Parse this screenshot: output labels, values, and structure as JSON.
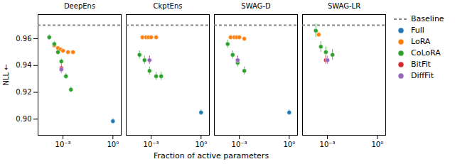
{
  "chart_data": {
    "type": "scatter",
    "xlabel": "Fraction of active parameters",
    "ylabel": "NLL ←",
    "log": "x",
    "xlim": [
      3.1622776601683795e-05,
      3.1622776601683795
    ],
    "xticks": [
      {
        "value": 0.001,
        "label": "10⁻³"
      },
      {
        "value": 1,
        "label": "10⁰"
      }
    ],
    "ylim": [
      0.888,
      0.978
    ],
    "yticks": [
      {
        "value": 0.9,
        "label": "0.90"
      },
      0.92,
      0.94,
      0.96
    ],
    "grid": false,
    "legend": "right",
    "panels": [
      {
        "title": "DeepEns",
        "series": [
          {
            "name": "Baseline",
            "type": "rule",
            "line_style": "dashed",
            "color": "#888888",
            "values": [
              0.97
            ]
          },
          {
            "name": "Full",
            "color": "#1f77b4",
            "marker": "circle",
            "x": [
              1.0
            ],
            "values": [
              0.8985
            ],
            "errors": [
              0.002
            ]
          },
          {
            "name": "LoRA",
            "color": "#ff7f0e",
            "marker": "circle",
            "x": [
              0.0003,
              0.0005,
              0.0007,
              0.001,
              0.002,
              0.004
            ],
            "values": [
              0.955,
              0.953,
              0.952,
              0.951,
              0.95,
              0.95
            ],
            "errors": [
              0.001,
              0.001,
              0.001,
              0.001,
              0.001,
              0.001
            ]
          },
          {
            "name": "CoLoRA",
            "color": "#2ca02c",
            "marker": "circle",
            "x": [
              0.00015,
              0.0003,
              0.0005,
              0.0008,
              0.0015,
              0.003
            ],
            "values": [
              0.961,
              0.956,
              0.95,
              0.943,
              0.932,
              0.922
            ],
            "errors": [
              0.002,
              0.002,
              0.002,
              0.002,
              0.002,
              0.002
            ]
          },
          {
            "name": "BitFit",
            "color": "#d62728",
            "marker": "circle",
            "x": [
              0.0008
            ],
            "values": [
              0.938
            ],
            "errors": [
              0.003
            ]
          },
          {
            "name": "DiffFit",
            "color": "#9467bd",
            "marker": "circle",
            "x": [
              0.0008
            ],
            "values": [
              0.937
            ],
            "errors": [
              0.003
            ]
          }
        ]
      },
      {
        "title": "CkptEns",
        "series": [
          {
            "name": "Baseline",
            "type": "rule",
            "line_style": "dashed",
            "color": "#888888",
            "values": [
              0.97
            ]
          },
          {
            "name": "Full",
            "color": "#1f77b4",
            "marker": "circle",
            "x": [
              1.0
            ],
            "values": [
              0.905
            ],
            "errors": [
              0.002
            ]
          },
          {
            "name": "LoRA",
            "color": "#ff7f0e",
            "marker": "circle",
            "x": [
              0.0003,
              0.0005,
              0.0007,
              0.001,
              0.002
            ],
            "values": [
              0.961,
              0.961,
              0.961,
              0.961,
              0.961
            ],
            "errors": [
              0.0005,
              0.0005,
              0.0005,
              0.0005,
              0.0005
            ]
          },
          {
            "name": "CoLoRA",
            "color": "#2ca02c",
            "marker": "circle",
            "x": [
              0.0002,
              0.0004,
              0.0008,
              0.002,
              0.004
            ],
            "values": [
              0.948,
              0.944,
              0.936,
              0.932,
              0.932
            ],
            "errors": [
              0.003,
              0.003,
              0.003,
              0.003,
              0.003
            ]
          },
          {
            "name": "BitFit",
            "color": "#d62728",
            "marker": "circle",
            "x": [
              0.0008
            ],
            "values": [
              0.944
            ],
            "errors": [
              0.003
            ]
          },
          {
            "name": "DiffFit",
            "color": "#9467bd",
            "marker": "circle",
            "x": [
              0.0008
            ],
            "values": [
              0.944
            ],
            "errors": [
              0.003
            ]
          }
        ]
      },
      {
        "title": "SWAG-D",
        "series": [
          {
            "name": "Baseline",
            "type": "rule",
            "line_style": "dashed",
            "color": "#888888",
            "values": [
              0.97
            ]
          },
          {
            "name": "Full",
            "color": "#1f77b4",
            "marker": "circle",
            "x": [
              1.0
            ],
            "values": [
              0.905
            ],
            "errors": [
              0.002
            ]
          },
          {
            "name": "LoRA",
            "color": "#ff7f0e",
            "marker": "circle",
            "x": [
              0.0003,
              0.0005,
              0.0007,
              0.001,
              0.002
            ],
            "values": [
              0.961,
              0.961,
              0.961,
              0.961,
              0.96
            ],
            "errors": [
              0.0005,
              0.0005,
              0.0005,
              0.0005,
              0.0005
            ]
          },
          {
            "name": "CoLoRA",
            "color": "#2ca02c",
            "marker": "circle",
            "x": [
              0.0002,
              0.0004,
              0.0008,
              0.002
            ],
            "values": [
              0.956,
              0.948,
              0.942,
              0.936
            ],
            "errors": [
              0.003,
              0.003,
              0.003,
              0.003
            ]
          },
          {
            "name": "BitFit",
            "color": "#d62728",
            "marker": "circle",
            "x": [
              0.0008
            ],
            "values": [
              0.944
            ],
            "errors": [
              0.003
            ]
          },
          {
            "name": "DiffFit",
            "color": "#9467bd",
            "marker": "circle",
            "x": [
              0.0008
            ],
            "values": [
              0.944
            ],
            "errors": [
              0.003
            ]
          }
        ]
      },
      {
        "title": "SWAG-LR",
        "series": [
          {
            "name": "Baseline",
            "type": "rule",
            "line_style": "dashed",
            "color": "#888888",
            "values": [
              0.97
            ]
          },
          {
            "name": "LoRA",
            "color": "#ff7f0e",
            "marker": "circle",
            "x": [
              0.0003
            ],
            "values": [
              0.963
            ],
            "errors": [
              0.002
            ]
          },
          {
            "name": "CoLoRA",
            "color": "#2ca02c",
            "marker": "circle",
            "x": [
              0.0002,
              0.0004,
              0.0008,
              0.002
            ],
            "values": [
              0.966,
              0.954,
              0.95,
              0.948
            ],
            "errors": [
              0.005,
              0.004,
              0.004,
              0.004
            ]
          },
          {
            "name": "BitFit",
            "color": "#d62728",
            "marker": "circle",
            "x": [
              0.0008
            ],
            "values": [
              0.944
            ],
            "errors": [
              0.003
            ]
          },
          {
            "name": "DiffFit",
            "color": "#9467bd",
            "marker": "circle",
            "x": [
              0.001
            ],
            "values": [
              0.944
            ],
            "errors": [
              0.003
            ]
          }
        ]
      }
    ]
  }
}
